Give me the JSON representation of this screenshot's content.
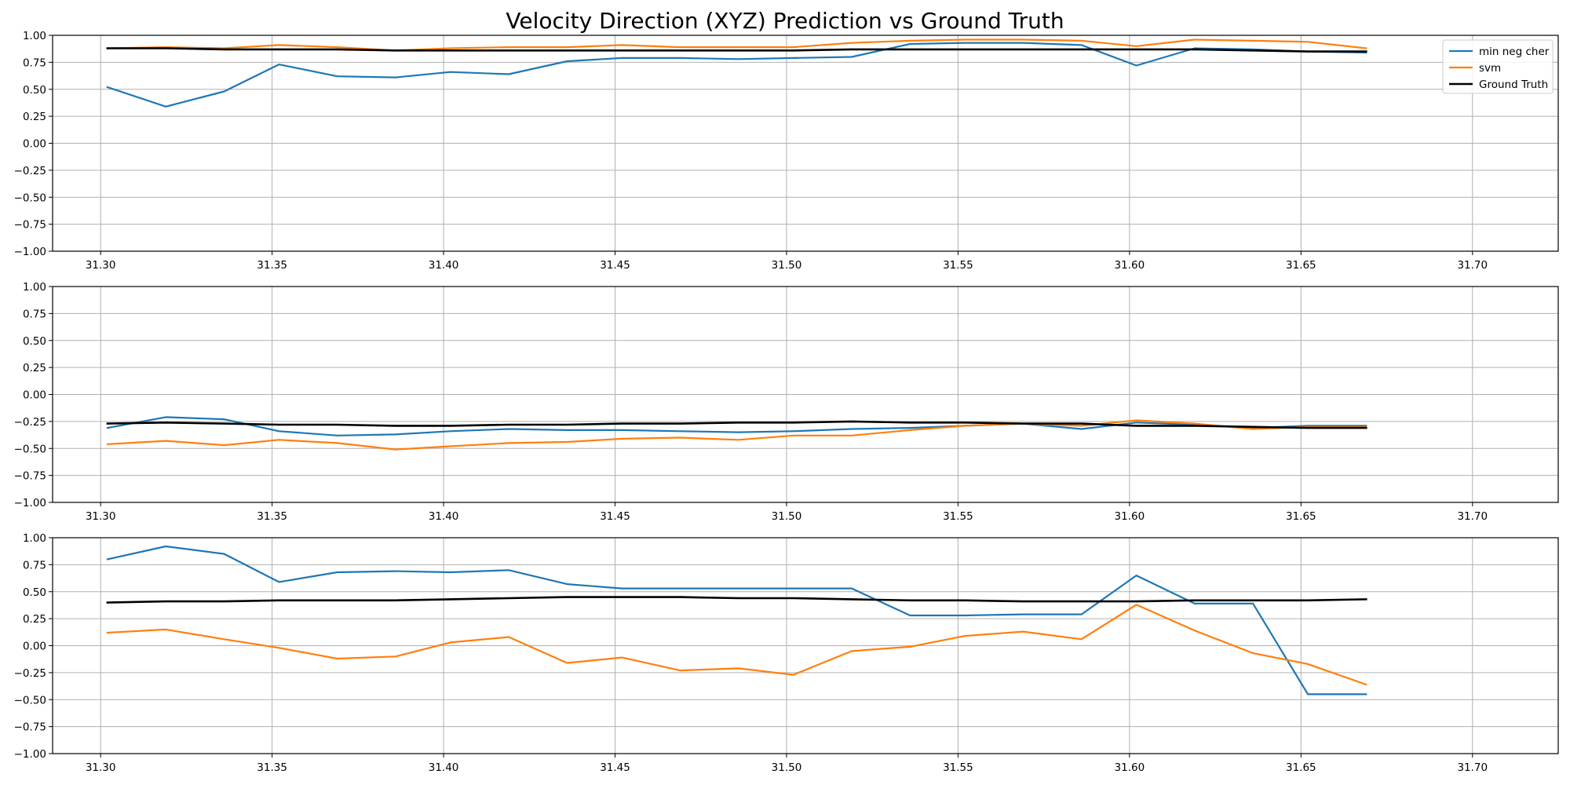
{
  "figure": {
    "title": "Velocity Direction (XYZ) Prediction vs Ground Truth"
  },
  "colors": {
    "min_neg_cher": "#1f77b4",
    "svm": "#ff7f0e",
    "ground_truth": "#000000",
    "grid": "#b0b0b0"
  },
  "chart_data": [
    {
      "type": "line",
      "title": "",
      "xlabel": "",
      "ylabel": "",
      "xlim": [
        31.286,
        31.725
      ],
      "ylim": [
        -1.0,
        1.0
      ],
      "xticks": [
        "31.30",
        "31.35",
        "31.40",
        "31.45",
        "31.50",
        "31.55",
        "31.60",
        "31.65",
        "31.70"
      ],
      "yticks": [
        "1.00",
        "0.75",
        "0.50",
        "0.25",
        "0.00",
        "−0.25",
        "−0.50",
        "−0.75",
        "−1.00"
      ],
      "grid": true,
      "legend": {
        "placement": "top-right",
        "entries": [
          "min neg cher",
          "svm",
          "Ground Truth"
        ]
      },
      "x": [
        31.302,
        31.319,
        31.336,
        31.352,
        31.369,
        31.386,
        31.402,
        31.419,
        31.436,
        31.452,
        31.469,
        31.486,
        31.502,
        31.519,
        31.536,
        31.552,
        31.569,
        31.586,
        31.602,
        31.619,
        31.636,
        31.652,
        31.669
      ],
      "series": [
        {
          "name": "min neg cher",
          "values": [
            0.52,
            0.34,
            0.48,
            0.73,
            0.62,
            0.61,
            0.66,
            0.64,
            0.76,
            0.79,
            0.79,
            0.78,
            0.79,
            0.8,
            0.92,
            0.93,
            0.93,
            0.91,
            0.72,
            0.88,
            0.87,
            0.85,
            0.84
          ]
        },
        {
          "name": "svm",
          "values": [
            0.88,
            0.89,
            0.88,
            0.91,
            0.89,
            0.86,
            0.88,
            0.89,
            0.89,
            0.91,
            0.89,
            0.89,
            0.89,
            0.93,
            0.95,
            0.96,
            0.96,
            0.95,
            0.9,
            0.96,
            0.95,
            0.94,
            0.88
          ]
        },
        {
          "name": "Ground Truth",
          "values": [
            0.88,
            0.88,
            0.87,
            0.87,
            0.87,
            0.86,
            0.86,
            0.86,
            0.86,
            0.86,
            0.86,
            0.86,
            0.86,
            0.87,
            0.87,
            0.87,
            0.87,
            0.87,
            0.87,
            0.87,
            0.86,
            0.85,
            0.85
          ]
        }
      ]
    },
    {
      "type": "line",
      "title": "",
      "xlabel": "",
      "ylabel": "",
      "xlim": [
        31.286,
        31.725
      ],
      "ylim": [
        -1.0,
        1.0
      ],
      "xticks": [
        "31.30",
        "31.35",
        "31.40",
        "31.45",
        "31.50",
        "31.55",
        "31.60",
        "31.65",
        "31.70"
      ],
      "yticks": [
        "1.00",
        "0.75",
        "0.50",
        "0.25",
        "0.00",
        "−0.25",
        "−0.50",
        "−0.75",
        "−1.00"
      ],
      "grid": true,
      "x": [
        31.302,
        31.319,
        31.336,
        31.352,
        31.369,
        31.386,
        31.402,
        31.419,
        31.436,
        31.452,
        31.469,
        31.486,
        31.502,
        31.519,
        31.536,
        31.552,
        31.569,
        31.586,
        31.602,
        31.619,
        31.636,
        31.652,
        31.669
      ],
      "series": [
        {
          "name": "min neg cher",
          "values": [
            -0.31,
            -0.21,
            -0.23,
            -0.34,
            -0.38,
            -0.37,
            -0.34,
            -0.32,
            -0.33,
            -0.33,
            -0.34,
            -0.35,
            -0.34,
            -0.32,
            -0.31,
            -0.29,
            -0.27,
            -0.32,
            -0.26,
            -0.28,
            -0.31,
            -0.29,
            -0.29
          ]
        },
        {
          "name": "svm",
          "values": [
            -0.46,
            -0.43,
            -0.47,
            -0.42,
            -0.45,
            -0.51,
            -0.48,
            -0.45,
            -0.44,
            -0.41,
            -0.4,
            -0.42,
            -0.38,
            -0.38,
            -0.33,
            -0.29,
            -0.27,
            -0.29,
            -0.24,
            -0.27,
            -0.32,
            -0.3,
            -0.3
          ]
        },
        {
          "name": "Ground Truth",
          "values": [
            -0.27,
            -0.26,
            -0.27,
            -0.28,
            -0.28,
            -0.29,
            -0.29,
            -0.28,
            -0.28,
            -0.27,
            -0.27,
            -0.26,
            -0.26,
            -0.25,
            -0.26,
            -0.26,
            -0.27,
            -0.27,
            -0.29,
            -0.29,
            -0.3,
            -0.31,
            -0.31
          ]
        }
      ]
    },
    {
      "type": "line",
      "title": "",
      "xlabel": "",
      "ylabel": "",
      "xlim": [
        31.286,
        31.725
      ],
      "ylim": [
        -1.0,
        1.0
      ],
      "xticks": [
        "31.30",
        "31.35",
        "31.40",
        "31.45",
        "31.50",
        "31.55",
        "31.60",
        "31.65",
        "31.70"
      ],
      "yticks": [
        "1.00",
        "0.75",
        "0.50",
        "0.25",
        "0.00",
        "−0.25",
        "−0.50",
        "−0.75",
        "−1.00"
      ],
      "grid": true,
      "x": [
        31.302,
        31.319,
        31.336,
        31.352,
        31.369,
        31.386,
        31.402,
        31.419,
        31.436,
        31.452,
        31.469,
        31.486,
        31.502,
        31.519,
        31.536,
        31.552,
        31.569,
        31.586,
        31.602,
        31.619,
        31.636,
        31.652,
        31.669
      ],
      "series": [
        {
          "name": "min neg cher",
          "values": [
            0.8,
            0.92,
            0.85,
            0.59,
            0.68,
            0.69,
            0.68,
            0.7,
            0.57,
            0.53,
            0.53,
            0.53,
            0.53,
            0.53,
            0.28,
            0.28,
            0.29,
            0.29,
            0.65,
            0.39,
            0.39,
            -0.45,
            -0.45
          ]
        },
        {
          "name": "svm",
          "values": [
            0.12,
            0.15,
            0.06,
            -0.02,
            -0.12,
            -0.1,
            0.03,
            0.08,
            -0.16,
            -0.11,
            -0.23,
            -0.21,
            -0.27,
            -0.05,
            -0.01,
            0.09,
            0.13,
            0.06,
            0.38,
            0.14,
            -0.07,
            -0.17,
            -0.36
          ]
        },
        {
          "name": "Ground Truth",
          "values": [
            0.4,
            0.41,
            0.41,
            0.42,
            0.42,
            0.42,
            0.43,
            0.44,
            0.45,
            0.45,
            0.45,
            0.44,
            0.44,
            0.43,
            0.42,
            0.42,
            0.41,
            0.41,
            0.41,
            0.42,
            0.42,
            0.42,
            0.43
          ]
        }
      ]
    }
  ]
}
